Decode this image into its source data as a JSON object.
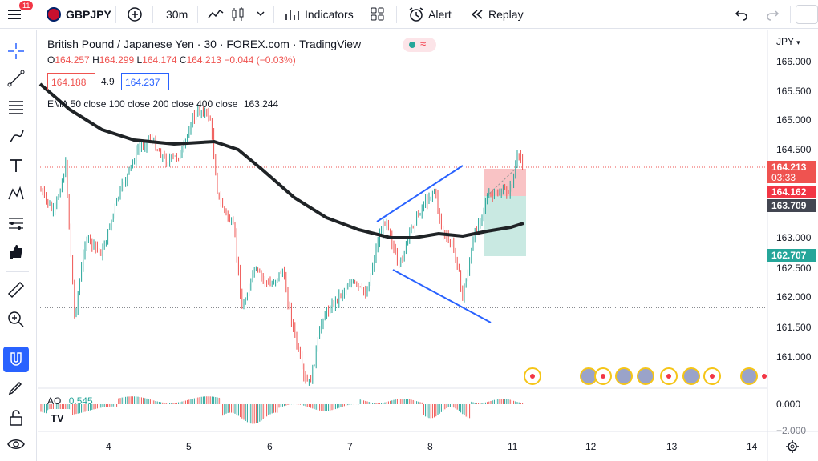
{
  "topbar": {
    "badge": "11",
    "symbol": "GBPJPY",
    "interval": "30m",
    "indicators": "Indicators",
    "alert": "Alert",
    "replay": "Replay"
  },
  "legend": {
    "title": "British Pound / Japanese Yen · 30 · FOREX.com · TradingView",
    "o_lbl": "O",
    "o": "164.257",
    "h_lbl": "H",
    "h": "164.299",
    "l_lbl": "L",
    "l": "164.174",
    "c_lbl": "C",
    "c": "164.213",
    "chg": "−0.044 (−0.03%)",
    "bid": "164.188",
    "spread": "4.9",
    "ask": "164.237",
    "ema": "EMA 50 close 100 close 200 close 400 close",
    "ema_val": "163.244"
  },
  "axis": {
    "currency": "JPY",
    "prices": [
      "166.000",
      "165.500",
      "165.000",
      "164.500",
      "163.000",
      "162.500",
      "162.000",
      "161.500",
      "161.000"
    ],
    "tags": {
      "last": "164.213",
      "countdown": "03:33",
      "sl": "164.162",
      "ema": "163.709",
      "tp": "162.707"
    },
    "times": [
      "4",
      "5",
      "6",
      "7",
      "8",
      "11",
      "12",
      "13",
      "14"
    ]
  },
  "ao": {
    "label": "AO",
    "value": "0.545",
    "ticks": [
      "0.000",
      "−2.000"
    ]
  },
  "colors": {
    "up": "#26a69a",
    "down": "#ef5350",
    "blue": "#2962ff",
    "ema": "#1f2326"
  }
}
